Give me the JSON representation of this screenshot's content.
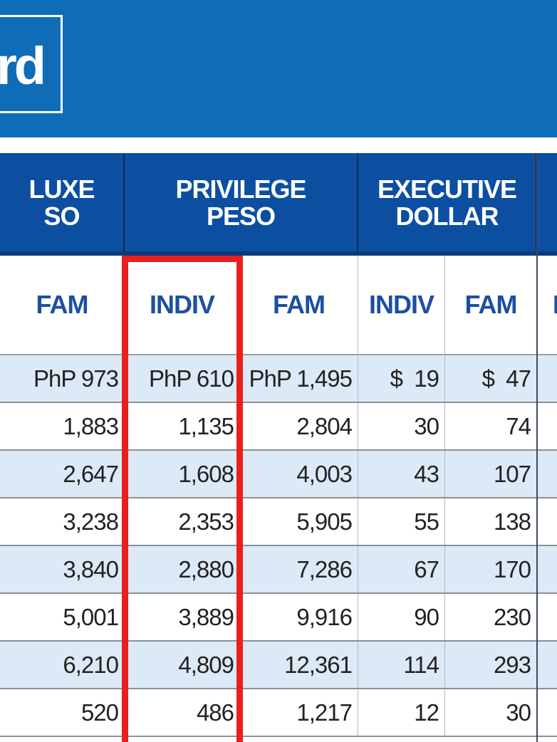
{
  "banner": {
    "title_fragment": "rd"
  },
  "groups": [
    {
      "label": "LUXE\nSO"
    },
    {
      "label": "PRIVILEGE\nPESO"
    },
    {
      "label": "EXECUTIVE\nDOLLAR"
    },
    {
      "label": ""
    }
  ],
  "subheaders": [
    "FAM",
    "INDIV",
    "FAM",
    "INDIV",
    "FAM",
    "I"
  ],
  "rows": [
    [
      "PhP 973",
      "PhP 610",
      "PhP 1,495",
      "$  19",
      "$  47"
    ],
    [
      "1,883",
      "1,135",
      "2,804",
      "30",
      "74"
    ],
    [
      "2,647",
      "1,608",
      "4,003",
      "43",
      "107"
    ],
    [
      "3,238",
      "2,353",
      "5,905",
      "55",
      "138"
    ],
    [
      "3,840",
      "2,880",
      "7,286",
      "67",
      "170"
    ],
    [
      "5,001",
      "3,889",
      "9,916",
      "90",
      "230"
    ],
    [
      "6,210",
      "4,809",
      "12,361",
      "114",
      "293"
    ],
    [
      "520",
      "486",
      "1,217",
      "12",
      "30"
    ]
  ],
  "colors": {
    "banner": "#0f6db8",
    "group_header": "#0c4fa1",
    "subheader_text": "#1c4fa3",
    "row_shade": "#dce9f6",
    "highlight": "#e8201d"
  }
}
